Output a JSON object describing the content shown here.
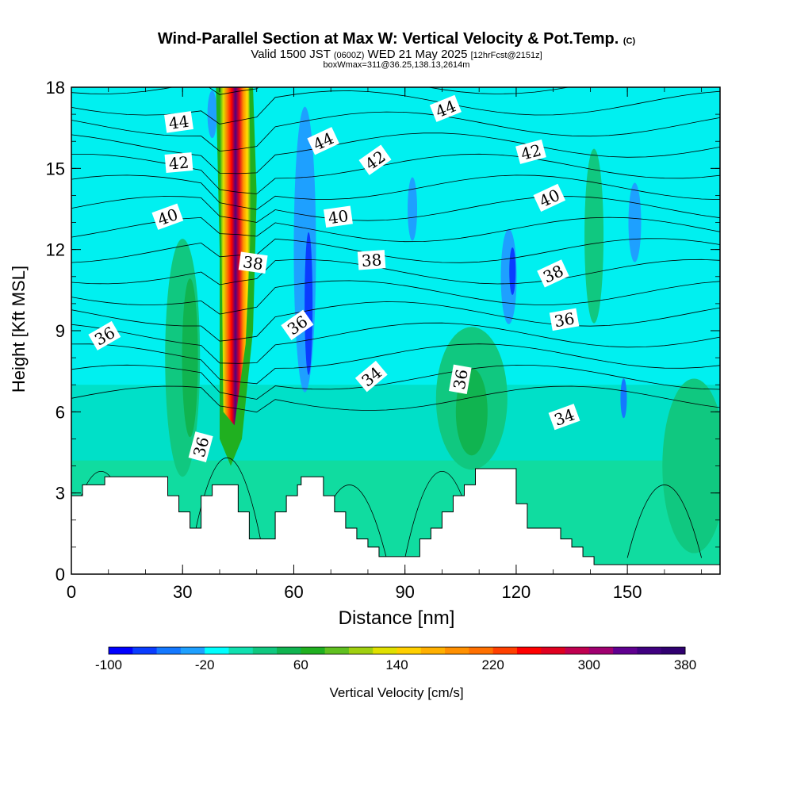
{
  "title": {
    "main": "Wind-Parallel Section at Max W: Vertical Velocity & Pot.Temp.",
    "copyright": "(C)",
    "valid": "Valid 1500 JST",
    "valid_z": "(0600Z)",
    "date": "WED 21 May 2025",
    "forecast": "[12hrFcst@2151z]",
    "box": "boxWmax=311@36.25,138.13,2614m"
  },
  "chart_data": {
    "type": "heatmap",
    "xlabel": "Distance [nm]",
    "ylabel": "Height [Kft MSL]",
    "xlim": [
      0,
      175
    ],
    "ylim": [
      0,
      18
    ],
    "x_ticks": [
      "0",
      "30",
      "60",
      "90",
      "120",
      "150"
    ],
    "y_ticks": [
      "0",
      "3",
      "6",
      "9",
      "12",
      "15",
      "18"
    ],
    "colorbar": {
      "label": "Vertical Velocity [cm/s]",
      "tick_labels": [
        "-100",
        "-20",
        "60",
        "140",
        "220",
        "300",
        "380"
      ],
      "tick_values": [
        -100,
        -20,
        60,
        140,
        220,
        300,
        380
      ],
      "min": -100,
      "max": 380,
      "step": 20,
      "colors": [
        "#0000ff",
        "#0a3cff",
        "#1478ff",
        "#1ea0ff",
        "#00ffff",
        "#10e0b0",
        "#10c880",
        "#10b450",
        "#20b020",
        "#60c020",
        "#a0d010",
        "#e0e000",
        "#ffd000",
        "#ffb000",
        "#ff9000",
        "#ff7000",
        "#ff4000",
        "#ff0000",
        "#e00020",
        "#c00050",
        "#a00070",
        "#600090",
        "#400080",
        "#300070"
      ]
    },
    "isentrope_labels": [
      "34",
      "36",
      "38",
      "40",
      "42",
      "44"
    ],
    "isentrope_label_marks": [
      {
        "text": "44",
        "x": 29,
        "y": 16.7,
        "a": -8
      },
      {
        "text": "44",
        "x": 68,
        "y": 16.0,
        "a": -25
      },
      {
        "text": "44",
        "x": 101,
        "y": 17.2,
        "a": -22
      },
      {
        "text": "42",
        "x": 29,
        "y": 15.2,
        "a": -5
      },
      {
        "text": "42",
        "x": 82,
        "y": 15.3,
        "a": -35
      },
      {
        "text": "42",
        "x": 124,
        "y": 15.6,
        "a": -15
      },
      {
        "text": "40",
        "x": 26,
        "y": 13.2,
        "a": -20
      },
      {
        "text": "40",
        "x": 72,
        "y": 13.2,
        "a": -8
      },
      {
        "text": "40",
        "x": 129,
        "y": 13.9,
        "a": -25
      },
      {
        "text": "38",
        "x": 49,
        "y": 11.5,
        "a": 8
      },
      {
        "text": "38",
        "x": 81,
        "y": 11.6,
        "a": -4
      },
      {
        "text": "38",
        "x": 130,
        "y": 11.1,
        "a": -25
      },
      {
        "text": "36",
        "x": 9,
        "y": 8.8,
        "a": -30
      },
      {
        "text": "36",
        "x": 61,
        "y": 9.2,
        "a": -35
      },
      {
        "text": "36",
        "x": 133,
        "y": 9.4,
        "a": -10
      },
      {
        "text": "36",
        "x": 105,
        "y": 7.2,
        "a": -80
      },
      {
        "text": "36",
        "x": 35,
        "y": 4.7,
        "a": -75
      },
      {
        "text": "34",
        "x": 81,
        "y": 7.3,
        "a": -40
      },
      {
        "text": "34",
        "x": 133,
        "y": 5.8,
        "a": -20
      }
    ],
    "terrain_kft": [
      [
        0,
        2.9
      ],
      [
        3,
        2.9
      ],
      [
        3,
        3.3
      ],
      [
        9,
        3.3
      ],
      [
        9,
        3.6
      ],
      [
        26,
        3.6
      ],
      [
        26,
        2.9
      ],
      [
        29,
        2.9
      ],
      [
        29,
        2.3
      ],
      [
        32,
        2.3
      ],
      [
        32,
        1.7
      ],
      [
        35,
        1.7
      ],
      [
        35,
        2.9
      ],
      [
        38,
        2.9
      ],
      [
        38,
        3.3
      ],
      [
        45,
        3.3
      ],
      [
        45,
        2.3
      ],
      [
        48,
        2.3
      ],
      [
        48,
        1.3
      ],
      [
        55,
        1.3
      ],
      [
        55,
        2.3
      ],
      [
        58,
        2.3
      ],
      [
        58,
        2.9
      ],
      [
        61,
        2.9
      ],
      [
        61,
        3.3
      ],
      [
        62,
        3.3
      ],
      [
        62,
        3.6
      ],
      [
        68,
        3.6
      ],
      [
        68,
        2.9
      ],
      [
        71,
        2.9
      ],
      [
        71,
        2.3
      ],
      [
        74,
        2.3
      ],
      [
        74,
        1.7
      ],
      [
        77,
        1.7
      ],
      [
        77,
        1.3
      ],
      [
        80,
        1.3
      ],
      [
        80,
        1.0
      ],
      [
        83,
        1.0
      ],
      [
        83,
        0.65
      ],
      [
        94,
        0.65
      ],
      [
        94,
        1.3
      ],
      [
        97,
        1.3
      ],
      [
        97,
        1.7
      ],
      [
        100,
        1.7
      ],
      [
        100,
        2.3
      ],
      [
        103,
        2.3
      ],
      [
        103,
        2.9
      ],
      [
        106,
        2.9
      ],
      [
        106,
        3.3
      ],
      [
        109,
        3.3
      ],
      [
        109,
        3.9
      ],
      [
        120,
        3.9
      ],
      [
        120,
        2.6
      ],
      [
        123,
        2.6
      ],
      [
        123,
        1.7
      ],
      [
        132,
        1.7
      ],
      [
        132,
        1.3
      ],
      [
        135,
        1.3
      ],
      [
        135,
        1.0
      ],
      [
        138,
        1.0
      ],
      [
        138,
        0.65
      ],
      [
        141,
        0.65
      ],
      [
        141,
        0.35
      ],
      [
        175,
        0.35
      ]
    ]
  }
}
